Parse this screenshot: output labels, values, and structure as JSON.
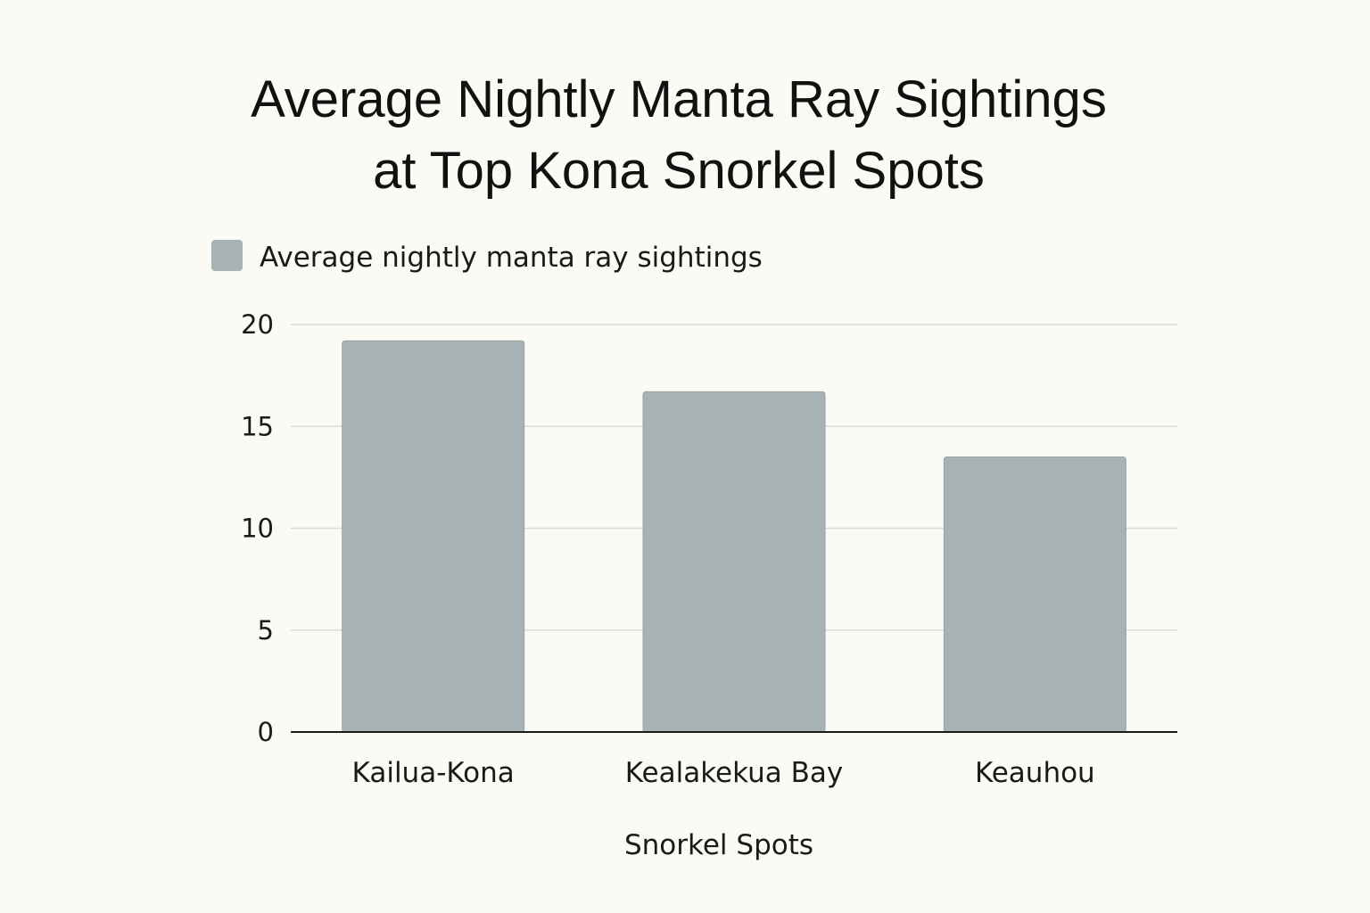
{
  "chart_data": {
    "type": "bar",
    "title_lines": [
      "Average Nightly Manta Ray Sightings",
      "at Top Kona Snorkel Spots"
    ],
    "categories": [
      "Kailua-Kona",
      "Kealakekua Bay",
      "Keauhou"
    ],
    "series": [
      {
        "name": "Average nightly manta ray sightings",
        "values": [
          19.2,
          16.7,
          13.5
        ],
        "color": "#a6b2b3"
      }
    ],
    "xlabel": "Snorkel Spots",
    "ylabel": "",
    "ylim": [
      0,
      20
    ],
    "yticks": [
      0,
      5,
      10,
      15,
      20
    ],
    "grid": true,
    "legend_position": "top-left"
  }
}
